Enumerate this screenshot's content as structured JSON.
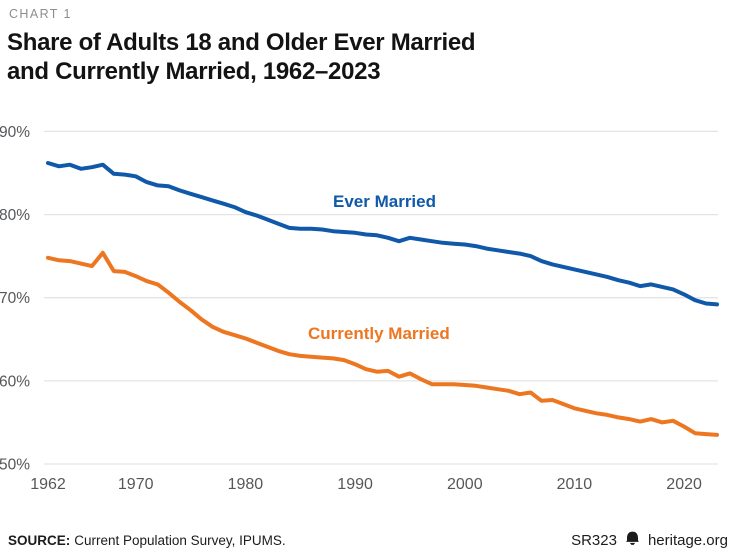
{
  "header": {
    "kicker": "CHART 1",
    "title_line1": "Share of Adults 18 and Older Ever Married",
    "title_line2": "and Currently Married, 1962–2023"
  },
  "chart_data": {
    "type": "line",
    "title": "Share of Adults 18 and Older Ever Married and Currently Married, 1962–2023",
    "xlabel": "",
    "ylabel": "",
    "x": [
      1962,
      1963,
      1964,
      1965,
      1966,
      1967,
      1968,
      1969,
      1970,
      1971,
      1972,
      1973,
      1974,
      1975,
      1976,
      1977,
      1978,
      1979,
      1980,
      1981,
      1982,
      1983,
      1984,
      1985,
      1986,
      1987,
      1988,
      1989,
      1990,
      1991,
      1992,
      1993,
      1994,
      1995,
      1996,
      1997,
      1998,
      1999,
      2000,
      2001,
      2002,
      2003,
      2004,
      2005,
      2006,
      2007,
      2008,
      2009,
      2010,
      2011,
      2012,
      2013,
      2014,
      2015,
      2016,
      2017,
      2018,
      2019,
      2020,
      2021,
      2022,
      2023
    ],
    "series": [
      {
        "name": "Ever Married",
        "color": "#1059A9",
        "values": [
          86.2,
          85.8,
          86.0,
          85.5,
          85.7,
          86.0,
          84.9,
          84.8,
          84.6,
          83.9,
          83.5,
          83.4,
          82.9,
          82.5,
          82.1,
          81.7,
          81.3,
          80.9,
          80.3,
          79.9,
          79.4,
          78.9,
          78.4,
          78.3,
          78.3,
          78.2,
          78.0,
          77.9,
          77.8,
          77.6,
          77.5,
          77.2,
          76.8,
          77.2,
          77.0,
          76.8,
          76.6,
          76.5,
          76.4,
          76.2,
          75.9,
          75.7,
          75.5,
          75.3,
          75.0,
          74.4,
          74.0,
          73.7,
          73.4,
          73.1,
          72.8,
          72.5,
          72.1,
          71.8,
          71.4,
          71.6,
          71.3,
          71.0,
          70.4,
          69.7,
          69.3,
          69.2
        ]
      },
      {
        "name": "Currently Married",
        "color": "#ED7621",
        "values": [
          74.8,
          74.5,
          74.4,
          74.1,
          73.8,
          75.4,
          73.2,
          73.1,
          72.6,
          72.0,
          71.6,
          70.6,
          69.5,
          68.5,
          67.4,
          66.5,
          65.9,
          65.5,
          65.1,
          64.6,
          64.1,
          63.6,
          63.2,
          63.0,
          62.9,
          62.8,
          62.7,
          62.5,
          62.0,
          61.4,
          61.1,
          61.2,
          60.5,
          60.9,
          60.2,
          59.6,
          59.6,
          59.6,
          59.5,
          59.4,
          59.2,
          59.0,
          58.8,
          58.4,
          58.6,
          57.6,
          57.7,
          57.2,
          56.7,
          56.4,
          56.1,
          55.9,
          55.6,
          55.4,
          55.1,
          55.4,
          55.0,
          55.2,
          54.5,
          53.7,
          53.6,
          53.5
        ]
      }
    ],
    "ylim": [
      50,
      90
    ],
    "yticks": [
      90,
      80,
      70,
      60,
      50
    ],
    "yticklabels": [
      "90%",
      "80%",
      "70%",
      "60%",
      "50%"
    ],
    "xticks": [
      1962,
      1970,
      1980,
      1990,
      2000,
      2010,
      2020
    ],
    "grid": "horizontal",
    "legend_position": "inline-labels"
  },
  "colors": {
    "blue": "#1059A9",
    "orange": "#ED7621",
    "gridline": "#E4E4E4",
    "tick_text": "#55575A",
    "title_text": "#131313"
  },
  "footer": {
    "source_label": "SOURCE:",
    "source_text": "Current Population Survey, IPUMS.",
    "report_id": "SR323",
    "site": "heritage.org"
  }
}
